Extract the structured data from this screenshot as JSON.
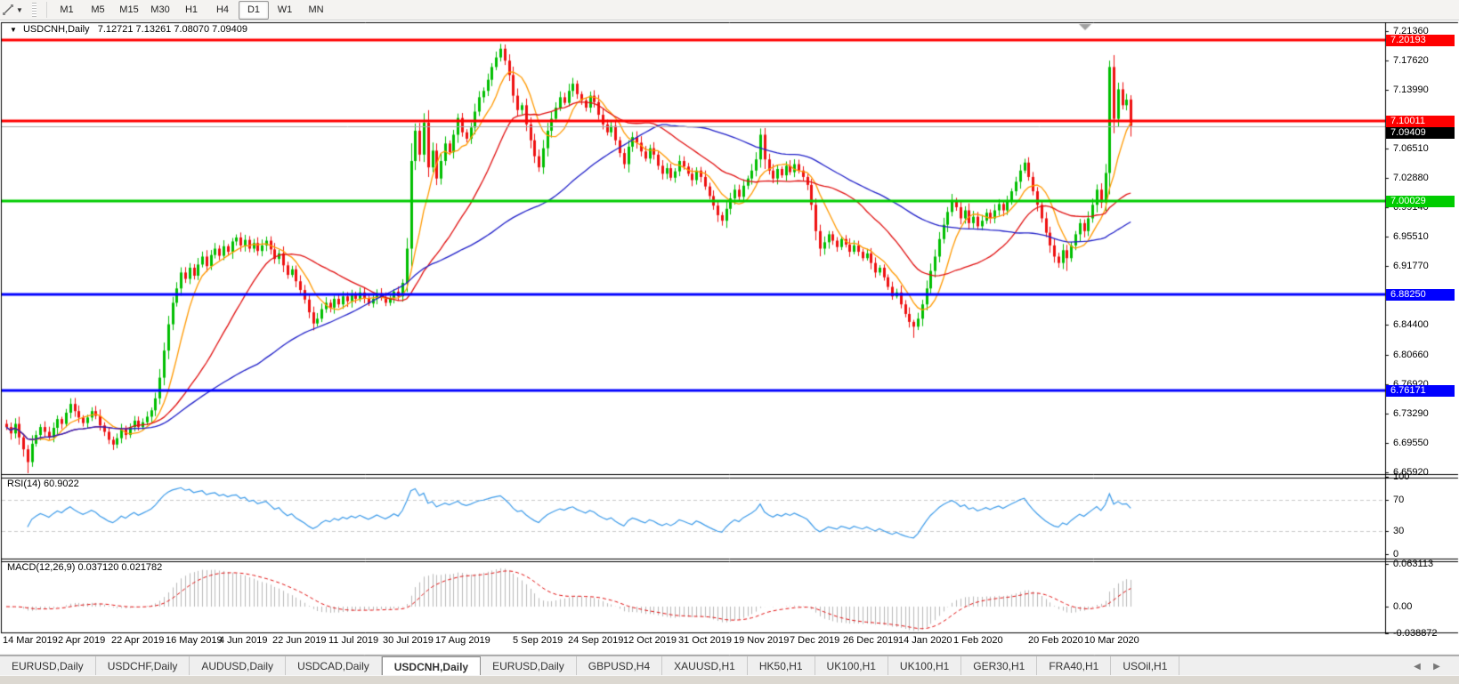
{
  "toolbar": {
    "timeframes": [
      "M1",
      "M5",
      "M15",
      "M30",
      "H1",
      "H4",
      "D1",
      "W1",
      "MN"
    ],
    "active_timeframe": "D1"
  },
  "chart": {
    "title": "USDCNH,Daily",
    "ohlc_text": "7.12721 7.13261 7.08070 7.09409"
  },
  "chart_data": {
    "type": "candlestick",
    "symbol": "USDCNH",
    "timeframe": "Daily",
    "last_ohlc": {
      "open": 7.12721,
      "high": 7.13261,
      "low": 7.0807,
      "close": 7.09409
    },
    "closes": [
      6.716,
      6.708,
      6.72,
      6.703,
      6.688,
      6.672,
      6.695,
      6.706,
      6.716,
      6.71,
      6.703,
      6.715,
      6.726,
      6.72,
      6.734,
      6.745,
      6.736,
      6.728,
      6.721,
      6.728,
      6.736,
      6.73,
      6.718,
      6.71,
      6.7,
      6.694,
      6.702,
      6.713,
      6.706,
      6.716,
      6.724,
      6.716,
      6.722,
      6.729,
      6.737,
      6.752,
      6.778,
      6.812,
      6.845,
      6.872,
      6.89,
      6.91,
      6.902,
      6.916,
      6.906,
      6.92,
      6.93,
      6.918,
      6.932,
      6.94,
      6.931,
      6.943,
      6.936,
      6.949,
      6.954,
      6.944,
      6.951,
      6.94,
      6.947,
      6.937,
      6.944,
      6.95,
      6.939,
      6.927,
      6.934,
      6.919,
      6.907,
      6.914,
      6.899,
      6.888,
      6.876,
      6.86,
      6.846,
      6.852,
      6.864,
      6.872,
      6.866,
      6.877,
      6.87,
      6.88,
      6.874,
      6.883,
      6.877,
      6.885,
      6.878,
      6.871,
      6.877,
      6.884,
      6.878,
      6.872,
      6.878,
      6.886,
      6.88,
      6.897,
      6.94,
      7.05,
      7.088,
      7.058,
      7.098,
      7.042,
      7.063,
      7.028,
      7.05,
      7.072,
      7.061,
      7.083,
      7.104,
      7.086,
      7.078,
      7.092,
      7.112,
      7.13,
      7.138,
      7.152,
      7.168,
      7.18,
      7.191,
      7.176,
      7.158,
      7.132,
      7.114,
      7.12,
      7.096,
      7.076,
      7.056,
      7.042,
      7.066,
      7.088,
      7.103,
      7.117,
      7.13,
      7.123,
      7.138,
      7.147,
      7.134,
      7.126,
      7.117,
      7.132,
      7.124,
      7.108,
      7.096,
      7.086,
      7.094,
      7.076,
      7.06,
      7.046,
      7.068,
      7.08,
      7.073,
      7.062,
      7.053,
      7.066,
      7.058,
      7.044,
      7.034,
      7.041,
      7.029,
      7.037,
      7.05,
      7.043,
      7.034,
      7.026,
      7.038,
      7.03,
      7.018,
      7.006,
      6.994,
      6.982,
      6.975,
      6.99,
      7.003,
      7.014,
      7.005,
      7.019,
      7.028,
      7.038,
      7.052,
      7.083,
      7.052,
      7.038,
      7.028,
      7.04,
      7.032,
      7.044,
      7.036,
      7.046,
      7.038,
      7.03,
      7.02,
      6.995,
      6.962,
      6.94,
      6.948,
      6.958,
      6.95,
      6.942,
      6.952,
      6.945,
      6.936,
      6.944,
      6.936,
      6.928,
      6.934,
      6.922,
      6.91,
      6.916,
      6.904,
      6.892,
      6.88,
      6.885,
      6.87,
      6.858,
      6.848,
      6.842,
      6.852,
      6.87,
      6.89,
      6.912,
      6.93,
      6.952,
      6.97,
      6.986,
      7.0,
      6.992,
      6.978,
      6.988,
      6.972,
      6.98,
      6.968,
      6.975,
      6.985,
      6.978,
      6.988,
      6.996,
      6.988,
      7.0,
      7.012,
      7.024,
      7.038,
      7.048,
      7.03,
      7.012,
      6.995,
      6.978,
      6.96,
      6.944,
      6.93,
      6.922,
      6.938,
      6.928,
      6.944,
      6.958,
      6.972,
      6.962,
      6.978,
      6.995,
      7.014,
      6.998,
      7.035,
      7.168,
      7.103,
      7.14,
      7.12,
      7.127,
      7.09409
    ],
    "x_labels": [
      "14 Mar 2019",
      "2 Apr 2019",
      "22 Apr 2019",
      "16 May 2019",
      "4 Jun 2019",
      "22 Jun 2019",
      "11 Jul 2019",
      "30 Jul 2019",
      "17 Aug 2019",
      "5 Sep 2019",
      "24 Sep 2019",
      "12 Oct 2019",
      "31 Oct 2019",
      "19 Nov 2019",
      "7 Dec 2019",
      "26 Dec 2019",
      "14 Jan 2020",
      "1 Feb 2020",
      "20 Feb 2020",
      "10 Mar 2020"
    ],
    "y_ticks": [
      "7.21360",
      "7.17620",
      "7.13990",
      "7.06510",
      "7.02880",
      "6.99140",
      "6.95510",
      "6.91770",
      "6.84400",
      "6.80660",
      "6.76920",
      "6.73290",
      "6.69550",
      "6.65920"
    ],
    "price_levels": [
      {
        "value": "7.20193",
        "color": "#ff0000"
      },
      {
        "value": "7.10011",
        "color": "#ff0000"
      },
      {
        "value": "7.00029",
        "color": "#00cc00"
      },
      {
        "value": "6.88250",
        "color": "#0000ff"
      },
      {
        "value": "6.76171",
        "color": "#0000ff"
      }
    ],
    "current_price": "7.09409",
    "candle_colors": {
      "bull": "#00be00",
      "bear": "#ee1111"
    },
    "moving_averages": [
      {
        "period": 8,
        "color": "#ff9900"
      },
      {
        "period": 25,
        "color": "#e01010"
      },
      {
        "period": 60,
        "color": "#2020c8"
      }
    ],
    "rsi_panel": {
      "label": "RSI(14) 60.9022",
      "period": 14,
      "value": "60.9022",
      "axis_ticks": [
        "100",
        "70",
        "30",
        "0"
      ],
      "levels": [
        70,
        30
      ],
      "line_color": "#3d9be9"
    },
    "macd_panel": {
      "label": "MACD(12,26,9) 0.037120 0.021782",
      "params": "12,26,9",
      "value": "0.037120",
      "signal_value": "0.021782",
      "axis_ticks": [
        "0.063113",
        "0.00",
        "-0.038872"
      ],
      "bar_color": "#b8b8b8",
      "signal_color": "#e01010"
    }
  },
  "tabs": {
    "items": [
      "EURUSD,Daily",
      "USDCHF,Daily",
      "AUDUSD,Daily",
      "USDCAD,Daily",
      "USDCNH,Daily",
      "EURUSD,Daily",
      "GBPUSD,H4",
      "XAUUSD,H1",
      "HK50,H1",
      "UK100,H1",
      "UK100,H1",
      "GER30,H1",
      "FRA40,H1",
      "USOil,H1"
    ],
    "active_index": 4
  }
}
